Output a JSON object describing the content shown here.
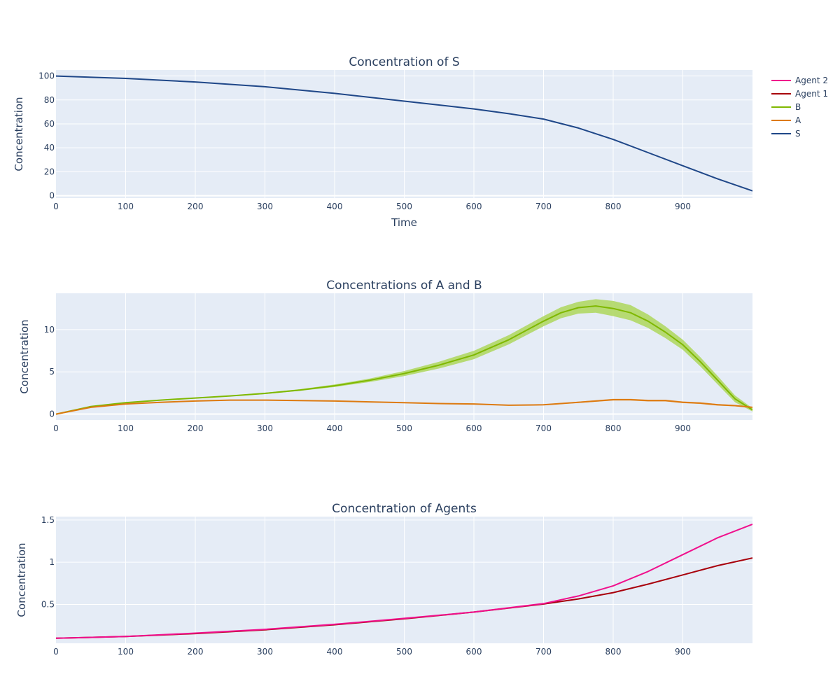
{
  "colors": {
    "plot_bg": "#E5ECF6",
    "grid": "#FFFFFF",
    "text": "#2a3f5f",
    "S": "#1F4788",
    "A": "#DD7A10",
    "B": "#7FB800",
    "B_band": "#B0D865",
    "A_band": "#E8AD68",
    "Agent 1": "#A8000B",
    "Agent 2": "#F00F8C"
  },
  "legend": {
    "placement": "top-right",
    "items": [
      {
        "name": "Agent 2",
        "color": "#F00F8C"
      },
      {
        "name": "Agent 1",
        "color": "#A8000B"
      },
      {
        "name": "B",
        "color": "#7FB800"
      },
      {
        "name": "A",
        "color": "#DD7A10"
      },
      {
        "name": "S",
        "color": "#1F4788"
      }
    ]
  },
  "chart_data": [
    {
      "type": "line",
      "title": "Concentration of S",
      "xlabel": "Time",
      "ylabel": "Concentration",
      "xlim": [
        0,
        1000
      ],
      "ylim": [
        -2,
        105
      ],
      "xticks": [
        0,
        100,
        200,
        300,
        400,
        500,
        600,
        700,
        800,
        900
      ],
      "yticks": [
        0,
        20,
        40,
        60,
        80,
        100
      ],
      "ytick_labels": [
        "0",
        "20",
        "40",
        "60",
        "80",
        "100"
      ],
      "grid": true,
      "series": [
        {
          "name": "S",
          "color": "#1F4788",
          "x": [
            0,
            100,
            200,
            300,
            400,
            500,
            600,
            650,
            700,
            750,
            800,
            850,
            900,
            950,
            1000
          ],
          "y": [
            100,
            98,
            95,
            91,
            85.5,
            79,
            72.5,
            68.5,
            64,
            56.5,
            47,
            36,
            25,
            14,
            4
          ]
        }
      ]
    },
    {
      "type": "line",
      "title": "Concentrations of A and B",
      "xlabel": "",
      "ylabel": "Concentration",
      "xlim": [
        0,
        1000
      ],
      "ylim": [
        -0.7,
        14.3
      ],
      "xticks": [
        0,
        100,
        200,
        300,
        400,
        500,
        600,
        700,
        800,
        900
      ],
      "yticks": [
        0,
        5,
        10
      ],
      "ytick_labels": [
        "0",
        "5",
        "10"
      ],
      "grid": true,
      "series": [
        {
          "name": "B",
          "color": "#7FB800",
          "band_color": "#B0D865",
          "x": [
            0,
            50,
            100,
            150,
            200,
            250,
            300,
            350,
            400,
            450,
            500,
            550,
            600,
            650,
            700,
            725,
            750,
            775,
            800,
            825,
            850,
            875,
            900,
            925,
            950,
            975,
            1000
          ],
          "y": [
            0,
            0.9,
            1.35,
            1.65,
            1.9,
            2.15,
            2.45,
            2.85,
            3.35,
            4.0,
            4.8,
            5.8,
            7.0,
            8.8,
            11.0,
            12.0,
            12.6,
            12.8,
            12.5,
            12.0,
            11.0,
            9.7,
            8.2,
            6.2,
            4.0,
            1.8,
            0.5
          ],
          "band": [
            0,
            0.05,
            0.05,
            0.05,
            0.05,
            0.05,
            0.08,
            0.1,
            0.15,
            0.2,
            0.3,
            0.4,
            0.5,
            0.55,
            0.6,
            0.65,
            0.7,
            0.8,
            0.9,
            0.9,
            0.8,
            0.7,
            0.6,
            0.55,
            0.5,
            0.4,
            0.2
          ]
        },
        {
          "name": "A",
          "color": "#DD7A10",
          "band_color": "#E8AD68",
          "x": [
            0,
            50,
            100,
            150,
            200,
            250,
            300,
            350,
            400,
            450,
            500,
            550,
            600,
            650,
            700,
            750,
            800,
            825,
            850,
            875,
            900,
            925,
            950,
            975,
            1000
          ],
          "y": [
            0,
            0.8,
            1.2,
            1.4,
            1.55,
            1.65,
            1.65,
            1.6,
            1.55,
            1.45,
            1.35,
            1.25,
            1.2,
            1.05,
            1.1,
            1.4,
            1.7,
            1.7,
            1.6,
            1.6,
            1.4,
            1.3,
            1.1,
            1.0,
            0.8
          ],
          "band": [
            0,
            0.03,
            0.03,
            0.03,
            0.03,
            0.03,
            0.03,
            0.03,
            0.04,
            0.04,
            0.05,
            0.05,
            0.05,
            0.05,
            0.06,
            0.08,
            0.1,
            0.1,
            0.1,
            0.1,
            0.1,
            0.1,
            0.1,
            0.08,
            0.06
          ]
        }
      ]
    },
    {
      "type": "line",
      "title": "Concentration of Agents",
      "xlabel": "",
      "ylabel": "Concentration",
      "xlim": [
        0,
        1000
      ],
      "ylim": [
        0.04,
        1.54
      ],
      "xticks": [
        0,
        100,
        200,
        300,
        400,
        500,
        600,
        700,
        800,
        900
      ],
      "yticks": [
        0.5,
        1,
        1.5
      ],
      "ytick_labels": [
        "0.5",
        "1",
        "1.5"
      ],
      "grid": true,
      "series": [
        {
          "name": "Agent 1",
          "color": "#A8000B",
          "x": [
            0,
            100,
            200,
            300,
            400,
            500,
            600,
            700,
            750,
            800,
            850,
            900,
            950,
            1000
          ],
          "y": [
            0.1,
            0.12,
            0.155,
            0.2,
            0.26,
            0.33,
            0.41,
            0.505,
            0.565,
            0.64,
            0.74,
            0.85,
            0.96,
            1.05
          ]
        },
        {
          "name": "Agent 2",
          "color": "#F00F8C",
          "x": [
            0,
            100,
            200,
            300,
            400,
            500,
            600,
            700,
            750,
            800,
            850,
            900,
            950,
            1000
          ],
          "y": [
            0.1,
            0.12,
            0.16,
            0.205,
            0.265,
            0.335,
            0.41,
            0.51,
            0.6,
            0.72,
            0.89,
            1.09,
            1.29,
            1.45
          ]
        }
      ]
    }
  ]
}
